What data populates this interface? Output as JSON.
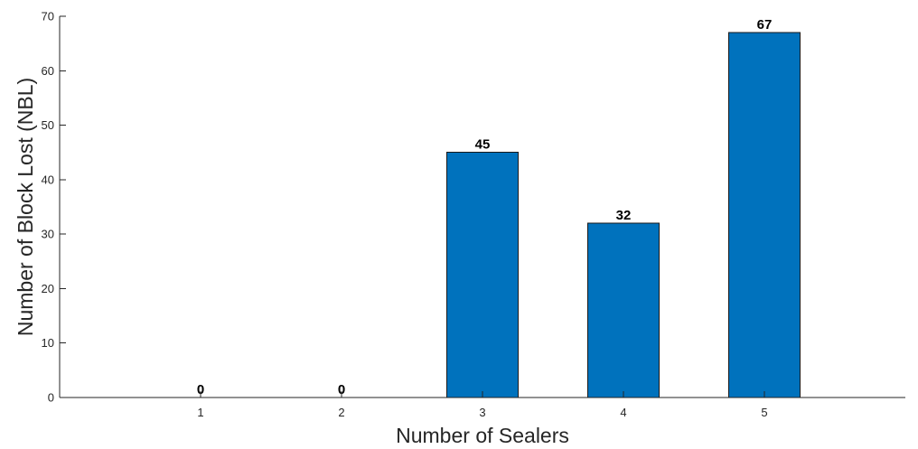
{
  "chart_data": {
    "type": "bar",
    "categories": [
      "1",
      "2",
      "3",
      "4",
      "5"
    ],
    "values": [
      0,
      0,
      45,
      32,
      67
    ],
    "data_labels": [
      "0",
      "0",
      "45",
      "32",
      "67"
    ],
    "title": "",
    "xlabel": "Number of Sealers",
    "ylabel": "Number of Block Lost (NBL)",
    "ylim": [
      0,
      70
    ],
    "yticks": [
      0,
      10,
      20,
      30,
      40,
      50,
      60,
      70
    ],
    "ytick_labels": [
      "0",
      "10",
      "20",
      "30",
      "40",
      "50",
      "60",
      "70"
    ],
    "xlim": [
      0,
      6
    ],
    "grid": false,
    "legend": "none",
    "colors": {
      "bar": "#0072BD",
      "axis": "#262626"
    }
  }
}
